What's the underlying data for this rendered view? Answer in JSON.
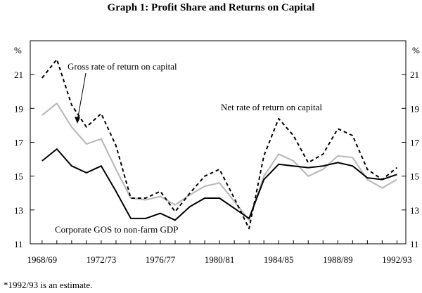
{
  "chart_data": {
    "type": "line",
    "title": "Graph 1: Profit Share and Returns on Capital",
    "y_unit_left": "%",
    "y_unit_right": "%",
    "ylim": [
      11,
      23
    ],
    "yticks": [
      11,
      13,
      15,
      17,
      19,
      21
    ],
    "xlim": [
      1968,
      1993
    ],
    "xticks": [
      {
        "label": "1968/69",
        "x": 1968
      },
      {
        "label": "1972/73",
        "x": 1972
      },
      {
        "label": "1976/77",
        "x": 1976
      },
      {
        "label": "1980/81",
        "x": 1980
      },
      {
        "label": "1984/85",
        "x": 1984
      },
      {
        "label": "1988/89",
        "x": 1988
      },
      {
        "label": "1992/93",
        "x": 1992
      }
    ],
    "x": [
      1968,
      1969,
      1970,
      1971,
      1972,
      1973,
      1974,
      1975,
      1976,
      1977,
      1978,
      1979,
      1980,
      1981,
      1982,
      1983,
      1984,
      1985,
      1986,
      1987,
      1988,
      1989,
      1990,
      1991,
      1992
    ],
    "series": [
      {
        "name": "Gross rate of return on capital",
        "style": "dashed",
        "color": "#000000",
        "values": [
          20.8,
          21.9,
          19.2,
          17.9,
          18.7,
          16.8,
          13.7,
          13.7,
          14.1,
          12.9,
          14.0,
          15.0,
          15.4,
          13.7,
          11.9,
          16.2,
          18.4,
          17.4,
          15.8,
          16.3,
          17.8,
          17.4,
          15.4,
          14.8,
          15.5
        ]
      },
      {
        "name": "Net rate of return on capital",
        "style": "solid",
        "color": "#bbbbbb",
        "values": [
          18.6,
          19.3,
          17.9,
          16.9,
          17.2,
          15.4,
          13.7,
          13.6,
          13.8,
          13.3,
          13.9,
          14.4,
          14.6,
          13.5,
          12.4,
          15.0,
          16.3,
          15.9,
          15.0,
          15.4,
          16.2,
          16.1,
          14.8,
          14.3,
          14.8
        ]
      },
      {
        "name": "Corporate GOS to non-farm GDP",
        "style": "solid",
        "color": "#000000",
        "values": [
          15.9,
          16.6,
          15.6,
          15.2,
          15.6,
          14.1,
          12.5,
          12.5,
          12.8,
          12.4,
          13.2,
          13.7,
          13.7,
          13.1,
          12.5,
          14.8,
          15.7,
          15.6,
          15.5,
          15.6,
          15.8,
          15.6,
          14.9,
          14.8,
          15.1
        ]
      }
    ],
    "annotations": [
      {
        "text": "Gross rate of return on capital",
        "series": 0
      },
      {
        "text": "Net rate of return on capital",
        "series": 1
      },
      {
        "text": "Corporate GOS to non-farm GDP",
        "series": 2
      }
    ],
    "footnote": "*1992/93 is an estimate."
  }
}
